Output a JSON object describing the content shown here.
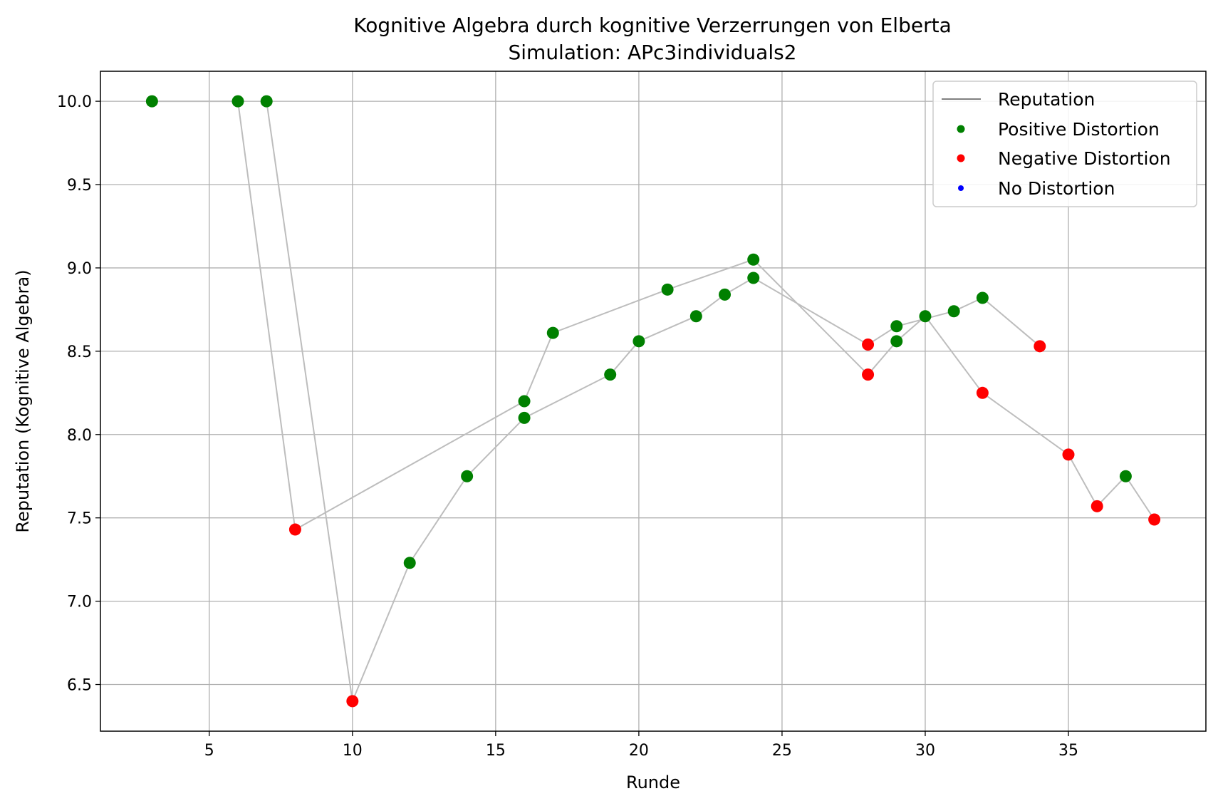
{
  "chart_data": {
    "type": "scatter",
    "title": "Kognitive Algebra durch kognitive Verzerrungen von Elberta",
    "subtitle": "Simulation: APc3individuals2",
    "xlabel": "Runde",
    "ylabel": "Reputation (Kognitive Algebra)",
    "xlim": [
      1.2,
      39.8
    ],
    "ylim": [
      6.22,
      10.18
    ],
    "xticks": [
      5,
      10,
      15,
      20,
      25,
      30,
      35
    ],
    "yticks": [
      6.5,
      7.0,
      7.5,
      8.0,
      8.5,
      9.0,
      9.5,
      10.0
    ],
    "xtick_labels": [
      "5",
      "10",
      "15",
      "20",
      "25",
      "30",
      "35"
    ],
    "ytick_labels": [
      "6.5",
      "7.0",
      "7.5",
      "8.0",
      "8.5",
      "9.0",
      "9.5",
      "10.0"
    ],
    "grid": true,
    "legend_position": "top-right",
    "legend": [
      {
        "label": "Reputation",
        "kind": "line",
        "color": "#808080"
      },
      {
        "label": "Positive Distortion",
        "kind": "marker",
        "color": "#008000"
      },
      {
        "label": "Negative Distortion",
        "kind": "marker",
        "color": "#ff0000"
      },
      {
        "label": "No Distortion",
        "kind": "marker",
        "color": "#0000ff"
      }
    ],
    "line_color": "#bdbdbd",
    "series": [
      {
        "points": [
          {
            "x": 3,
            "y": 10.0,
            "d": "positive"
          },
          {
            "x": 6,
            "y": 10.0,
            "d": "positive"
          },
          {
            "x": 8,
            "y": 7.43,
            "d": "negative"
          },
          {
            "x": 16,
            "y": 8.2,
            "d": "positive"
          },
          {
            "x": 17,
            "y": 8.61,
            "d": "positive"
          },
          {
            "x": 21,
            "y": 8.87,
            "d": "positive"
          },
          {
            "x": 24,
            "y": 9.05,
            "d": "positive"
          },
          {
            "x": 28,
            "y": 8.36,
            "d": "negative"
          },
          {
            "x": 29,
            "y": 8.56,
            "d": "positive"
          },
          {
            "x": 30,
            "y": 8.71,
            "d": "positive"
          },
          {
            "x": 32,
            "y": 8.25,
            "d": "negative"
          },
          {
            "x": 35,
            "y": 7.88,
            "d": "negative"
          },
          {
            "x": 36,
            "y": 7.57,
            "d": "negative"
          },
          {
            "x": 37,
            "y": 7.75,
            "d": "positive"
          },
          {
            "x": 38,
            "y": 7.49,
            "d": "negative"
          }
        ]
      },
      {
        "points": [
          {
            "x": 7,
            "y": 10.0,
            "d": "positive"
          },
          {
            "x": 10,
            "y": 6.4,
            "d": "negative"
          },
          {
            "x": 12,
            "y": 7.23,
            "d": "positive"
          },
          {
            "x": 14,
            "y": 7.75,
            "d": "positive"
          },
          {
            "x": 16,
            "y": 8.1,
            "d": "positive"
          },
          {
            "x": 19,
            "y": 8.36,
            "d": "positive"
          },
          {
            "x": 20,
            "y": 8.56,
            "d": "positive"
          },
          {
            "x": 22,
            "y": 8.71,
            "d": "positive"
          },
          {
            "x": 23,
            "y": 8.84,
            "d": "positive"
          },
          {
            "x": 24,
            "y": 8.94,
            "d": "positive"
          },
          {
            "x": 28,
            "y": 8.54,
            "d": "negative"
          },
          {
            "x": 29,
            "y": 8.65,
            "d": "positive"
          },
          {
            "x": 31,
            "y": 8.74,
            "d": "positive"
          },
          {
            "x": 32,
            "y": 8.82,
            "d": "positive"
          },
          {
            "x": 34,
            "y": 8.53,
            "d": "negative"
          }
        ]
      }
    ],
    "marker_colors": {
      "positive": "#008000",
      "negative": "#ff0000",
      "none": "#0000ff"
    }
  }
}
